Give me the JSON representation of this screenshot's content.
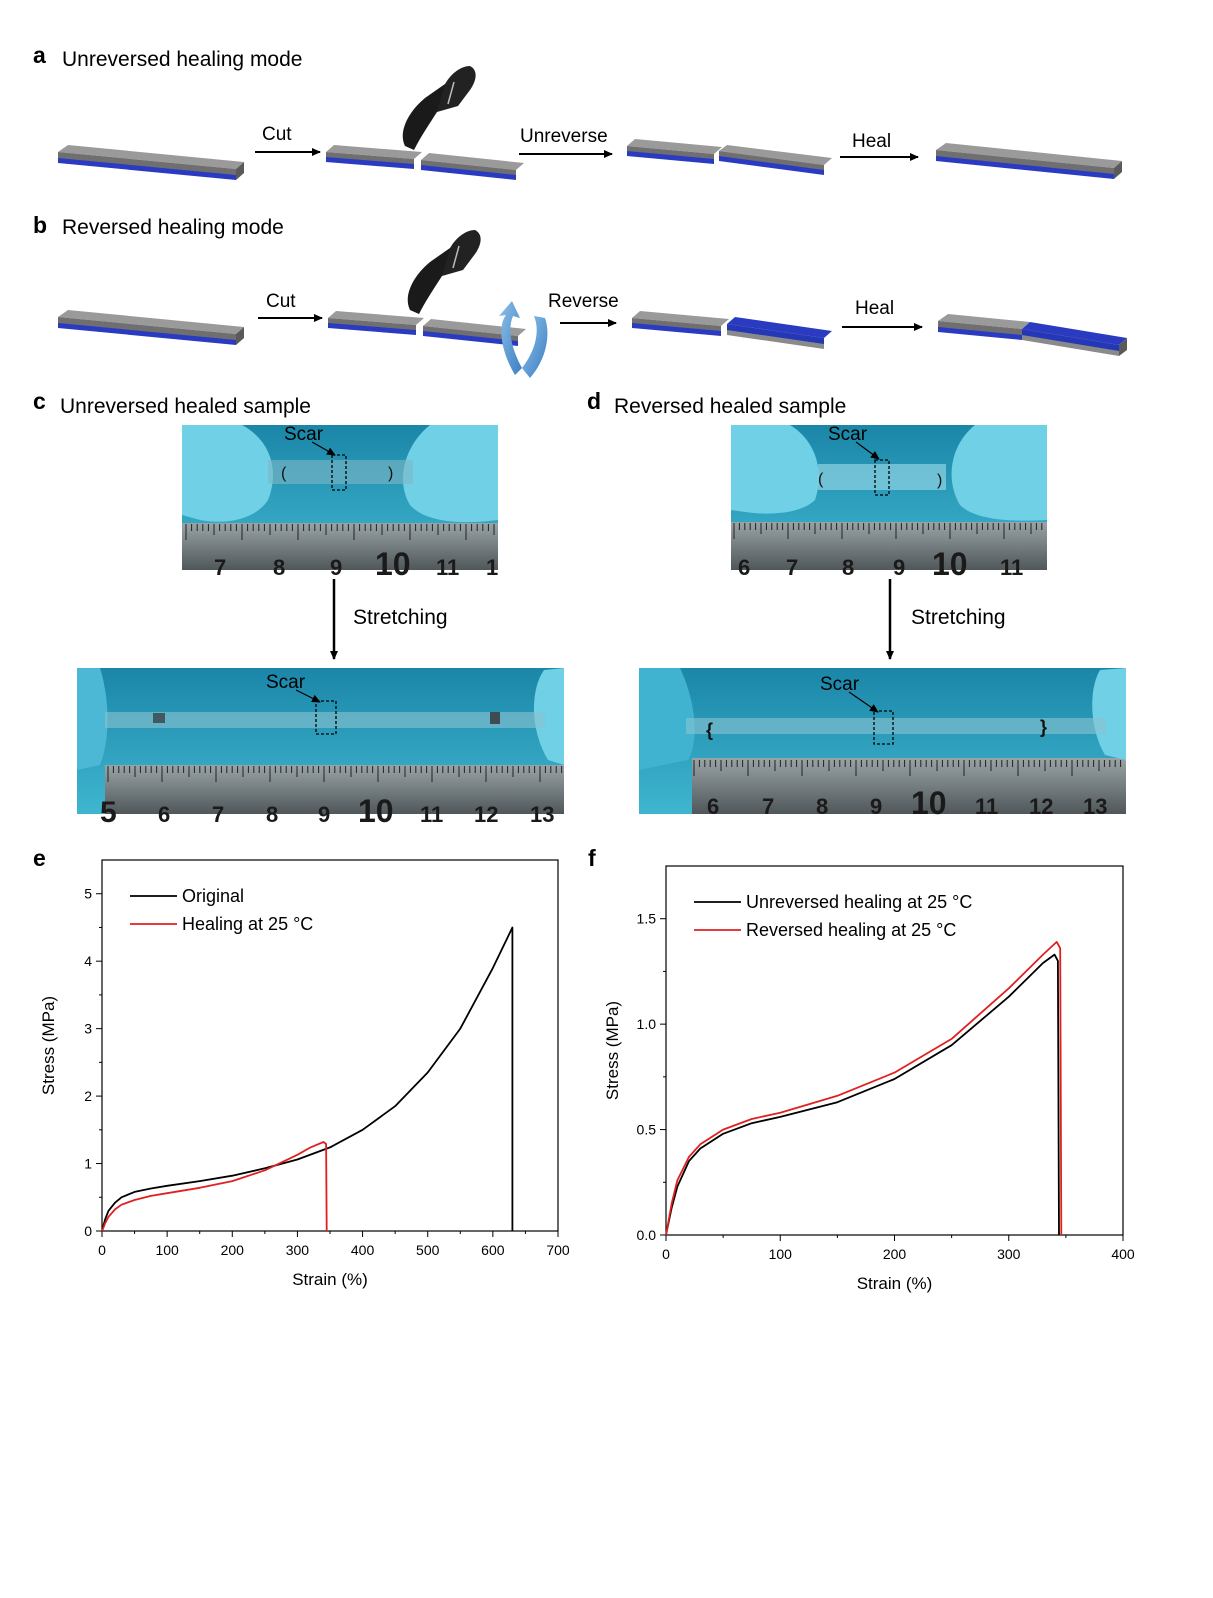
{
  "panels": {
    "a": {
      "letter": "a",
      "title": "Unreversed healing mode",
      "step1": "Cut",
      "step2": "Unreverse",
      "step3": "Heal"
    },
    "b": {
      "letter": "b",
      "title": "Reversed healing mode",
      "step1": "Cut",
      "step2": "Reverse",
      "step3": "Heal"
    },
    "c": {
      "letter": "c",
      "title": "Unreversed healed sample",
      "scar": "Scar",
      "stretch": "Stretching",
      "ruler_top": [
        "7",
        "8",
        "9",
        "10",
        "11",
        "1"
      ],
      "ruler_bottom": [
        "5",
        "6",
        "7",
        "8",
        "9",
        "10",
        "11",
        "12",
        "13"
      ]
    },
    "d": {
      "letter": "d",
      "title": "Reversed healed sample",
      "scar": "Scar",
      "stretch": "Stretching",
      "ruler_top": [
        "6",
        "7",
        "8",
        "9",
        "10",
        "11"
      ],
      "ruler_bottom": [
        "6",
        "7",
        "8",
        "9",
        "10",
        "11",
        "12",
        "13"
      ]
    }
  },
  "colors": {
    "slab_top": "#8f8f8f",
    "slab_side": "#6f6f6f",
    "slab_base": "#2a3bc2",
    "glove": "#5cc6df",
    "background_blue": "#1c8fb0",
    "series_black": "#000000",
    "series_red": "#e02020",
    "curl_arrow": "#5b9bd5"
  },
  "chart_data": [
    {
      "letter": "e",
      "type": "line",
      "xlabel": "Strain (%)",
      "ylabel": "Stress (MPa)",
      "xlim": [
        0,
        700
      ],
      "ylim": [
        0,
        5.5
      ],
      "xticks": [
        "0",
        "100",
        "200",
        "300",
        "400",
        "500",
        "600",
        "700"
      ],
      "yticks": [
        "0",
        "1",
        "2",
        "3",
        "4",
        "5"
      ],
      "legend_placement": "top-left",
      "series": [
        {
          "name": "Original",
          "color": "#000000",
          "x": [
            0,
            5,
            10,
            20,
            30,
            50,
            75,
            100,
            150,
            200,
            250,
            300,
            350,
            400,
            450,
            500,
            550,
            600,
            630,
            630
          ],
          "y": [
            0,
            0.18,
            0.3,
            0.42,
            0.5,
            0.58,
            0.63,
            0.67,
            0.74,
            0.82,
            0.93,
            1.06,
            1.24,
            1.5,
            1.85,
            2.35,
            3.0,
            3.9,
            4.5,
            0
          ]
        },
        {
          "name": "Healing at 25 °C",
          "color": "#e02020",
          "x": [
            0,
            5,
            10,
            20,
            30,
            50,
            75,
            100,
            150,
            200,
            250,
            300,
            320,
            340,
            344,
            345
          ],
          "y": [
            0,
            0.12,
            0.21,
            0.32,
            0.39,
            0.46,
            0.52,
            0.56,
            0.64,
            0.74,
            0.9,
            1.13,
            1.24,
            1.32,
            1.29,
            0
          ]
        }
      ]
    },
    {
      "letter": "f",
      "type": "line",
      "xlabel": "Strain (%)",
      "ylabel": "Stress (MPa)",
      "xlim": [
        0,
        400
      ],
      "ylim": [
        0,
        1.75
      ],
      "xticks": [
        "0",
        "100",
        "200",
        "300",
        "400"
      ],
      "yticks": [
        "0.0",
        "0.5",
        "1.0",
        "1.5"
      ],
      "legend_placement": "top-left",
      "series": [
        {
          "name": "Unreversed healing at 25 °C",
          "color": "#000000",
          "x": [
            0,
            5,
            10,
            20,
            30,
            50,
            75,
            100,
            150,
            200,
            250,
            300,
            330,
            340,
            343,
            344
          ],
          "y": [
            0,
            0.13,
            0.23,
            0.35,
            0.41,
            0.48,
            0.53,
            0.56,
            0.63,
            0.74,
            0.9,
            1.13,
            1.29,
            1.33,
            1.3,
            0
          ]
        },
        {
          "name": "Reversed healing at 25 °C",
          "color": "#e02020",
          "x": [
            0,
            5,
            10,
            20,
            30,
            50,
            75,
            100,
            150,
            200,
            250,
            300,
            330,
            342,
            345,
            346
          ],
          "y": [
            0,
            0.15,
            0.26,
            0.37,
            0.43,
            0.5,
            0.55,
            0.58,
            0.66,
            0.77,
            0.93,
            1.17,
            1.33,
            1.39,
            1.36,
            0
          ]
        }
      ]
    }
  ]
}
